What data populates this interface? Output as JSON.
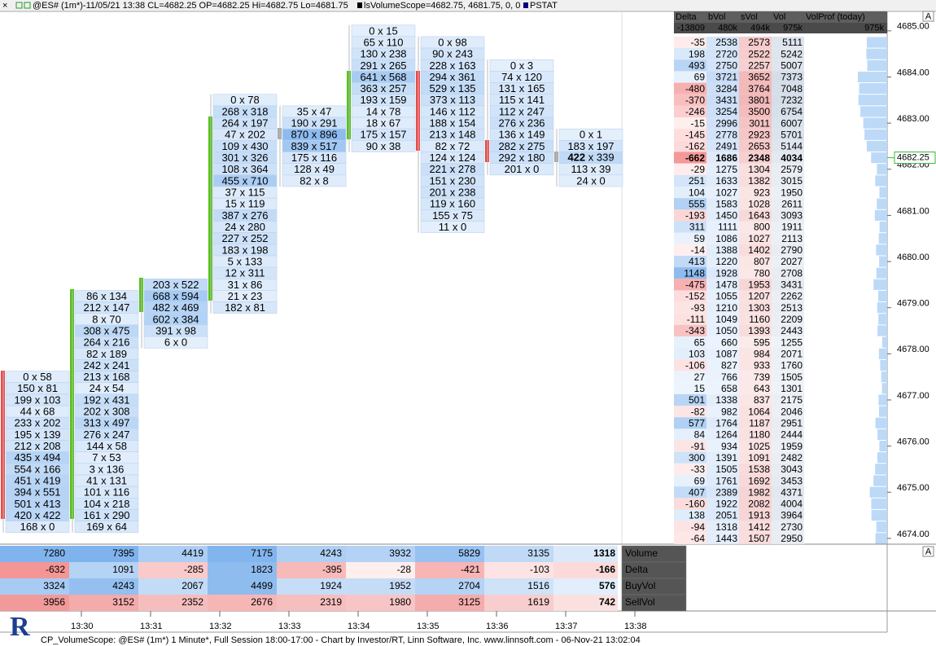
{
  "title_bar": {
    "symbol": "@ES# (1m*)-11/05/21 13:38 CL=4682.25 OP=4682.25 Hi=4682.75 Lo=4681.75",
    "study": "lsVolumeScope=4682.75, 4681.75, 0, 0",
    "stat": "PSTAT"
  },
  "footprint": [
    {
      "high": 4677.5,
      "cells": [
        "0 x 58",
        "150 x 81",
        "199 x 103",
        "44 x 68",
        "233 x 202",
        "195 x 139",
        "212 x 208",
        "435 x 494",
        "554 x 166",
        "451 x 419",
        "394 x 551",
        "501 x 413",
        "420 x 422",
        "168 x 0"
      ]
    },
    {
      "high": 4679.25,
      "cells": [
        "86 x 134",
        "212 x 147",
        "8 x 70",
        "308 x 475",
        "264 x 216",
        "82 x 189",
        "242 x 241",
        "213 x 168",
        "24 x 54",
        "192 x 431",
        "202 x 308",
        "313 x 497",
        "276 x 247",
        "144 x 58",
        "7 x 53",
        "3 x 136",
        "41 x 131",
        "101 x 116",
        "104 x 218",
        "161 x 290",
        "169 x 64"
      ]
    },
    {
      "high": 4679.5,
      "cells": [
        "203 x 522",
        "668 x 594",
        "482 x 469",
        "602 x 384",
        "391 x 98",
        "6 x 0"
      ]
    },
    {
      "high": 4683.5,
      "cells": [
        "0 x 78",
        "268 x 318",
        "264 x 197",
        "47 x 202",
        "109 x 430",
        "301 x 326",
        "108 x 364",
        "455 x 710",
        "37 x 115",
        "15 x 119",
        "387 x 276",
        "24 x 280",
        "227 x 252",
        "183 x 198",
        "5 x 133",
        "12 x 311",
        "31 x 86",
        "21 x 23",
        "182 x 81"
      ]
    },
    {
      "high": 4683.25,
      "cells": [
        "35 x 47",
        "190 x 291",
        "870 x 896",
        "839 x 517",
        "175 x 116",
        "128 x 49",
        "82 x 8"
      ]
    },
    {
      "high": 4685,
      "cells": [
        "0 x 15",
        "65 x 110",
        "130 x 238",
        "291 x 265",
        "641 x 568",
        "363 x 257",
        "193 x 159",
        "14 x 78",
        "18 x 67",
        "175 x 157",
        "90 x 38"
      ]
    },
    {
      "high": 4684.75,
      "cells": [
        "0 x 98",
        "90 x 243",
        "228 x 163",
        "294 x 361",
        "529 x 135",
        "373 x 113",
        "146 x 112",
        "188 x 154",
        "213 x 148",
        "82 x 72",
        "124 x 124",
        "221 x 278",
        "151 x 230",
        "201 x 238",
        "119 x 160",
        "155 x 75",
        "11 x 0"
      ]
    },
    {
      "high": 4684.25,
      "cells": [
        "0 x 3",
        "74 x 120",
        "131 x 165",
        "115 x 141",
        "112 x 247",
        "276 x 236",
        "136 x 149",
        "282 x 275",
        "292 x 180",
        "201 x 0"
      ]
    },
    {
      "high": 4682.75,
      "cells": [
        "0 x 1",
        "183 x 197",
        "422 x 339",
        "113 x 39",
        "24 x 0"
      ]
    }
  ],
  "profile_table": {
    "headers": [
      "Delta",
      "bVol",
      "sVol",
      "Vol",
      "VolProf (today)"
    ],
    "totals": [
      "-13809",
      "480k",
      "494k",
      "975k",
      "975k"
    ],
    "rows": [
      [
        -35,
        2538,
        2573,
        5111
      ],
      [
        198,
        2720,
        2522,
        5242
      ],
      [
        493,
        2750,
        2257,
        5007
      ],
      [
        69,
        3721,
        3652,
        7373
      ],
      [
        -480,
        3284,
        3764,
        7048
      ],
      [
        -370,
        3431,
        3801,
        7232
      ],
      [
        -246,
        3254,
        3500,
        6754
      ],
      [
        -15,
        2996,
        3011,
        6007
      ],
      [
        -145,
        2778,
        2923,
        5701
      ],
      [
        -162,
        2491,
        2653,
        5144
      ],
      [
        -662,
        1686,
        2348,
        4034
      ],
      [
        -29,
        1275,
        1304,
        2579
      ],
      [
        251,
        1633,
        1382,
        3015
      ],
      [
        104,
        1027,
        923,
        1950
      ],
      [
        555,
        1583,
        1028,
        2611
      ],
      [
        -193,
        1450,
        1643,
        3093
      ],
      [
        311,
        1111,
        800,
        1911
      ],
      [
        59,
        1086,
        1027,
        2113
      ],
      [
        -14,
        1388,
        1402,
        2790
      ],
      [
        413,
        1220,
        807,
        2027
      ],
      [
        1148,
        1928,
        780,
        2708
      ],
      [
        -475,
        1478,
        1953,
        3431
      ],
      [
        -152,
        1055,
        1207,
        2262
      ],
      [
        -93,
        1210,
        1303,
        2513
      ],
      [
        -111,
        1049,
        1160,
        2209
      ],
      [
        -343,
        1050,
        1393,
        2443
      ],
      [
        65,
        660,
        595,
        1255
      ],
      [
        103,
        1087,
        984,
        2071
      ],
      [
        -106,
        827,
        933,
        1760
      ],
      [
        27,
        766,
        739,
        1505
      ],
      [
        15,
        658,
        643,
        1301
      ],
      [
        501,
        1338,
        837,
        2175
      ],
      [
        -82,
        982,
        1064,
        2046
      ],
      [
        577,
        1764,
        1187,
        2951
      ],
      [
        84,
        1264,
        1180,
        2444
      ],
      [
        -91,
        934,
        1025,
        1959
      ],
      [
        300,
        1391,
        1091,
        2482
      ],
      [
        -33,
        1505,
        1538,
        3043
      ],
      [
        69,
        1761,
        1692,
        3453
      ],
      [
        407,
        2389,
        1982,
        4371
      ],
      [
        -160,
        1922,
        2082,
        4004
      ],
      [
        138,
        2051,
        1913,
        3964
      ],
      [
        -94,
        1318,
        1412,
        2730
      ],
      [
        -64,
        1443,
        1507,
        2950
      ]
    ]
  },
  "price_axis": {
    "ticks": [
      {
        "value": 4685,
        "label": "4685.00"
      },
      {
        "value": 4684,
        "label": "4684.00"
      },
      {
        "value": 4683,
        "label": "4683.00"
      },
      {
        "value": 4682,
        "label": "4682.00"
      },
      {
        "value": 4681,
        "label": "4681.00"
      },
      {
        "value": 4680,
        "label": "4680.00"
      },
      {
        "value": 4679,
        "label": "4679.00"
      },
      {
        "value": 4678,
        "label": "4678.00"
      },
      {
        "value": 4677,
        "label": "4677.00"
      },
      {
        "value": 4676,
        "label": "4676.00"
      },
      {
        "value": 4675,
        "label": "4675.00"
      },
      {
        "value": 4674,
        "label": "4674.00"
      }
    ],
    "current": {
      "value": 4682.25,
      "label": "4682.25"
    }
  },
  "summary_table": {
    "rows": [
      {
        "name": "Volume",
        "values": [
          7280,
          7395,
          4419,
          7175,
          4243,
          3932,
          5829,
          3135,
          1318
        ]
      },
      {
        "name": "Delta",
        "values": [
          -632,
          1091,
          -285,
          1823,
          -395,
          -28,
          -421,
          -103,
          -166
        ]
      },
      {
        "name": "BuyVol",
        "values": [
          3324,
          4243,
          2067,
          4499,
          1924,
          1952,
          2704,
          1516,
          576
        ]
      },
      {
        "name": "SellVol",
        "values": [
          3956,
          3152,
          2352,
          2676,
          2319,
          1980,
          3125,
          1619,
          742
        ]
      }
    ]
  },
  "time_axis": [
    "13:30",
    "13:31",
    "13:32",
    "13:33",
    "13:34",
    "13:35",
    "13:36",
    "13:37",
    "13:38"
  ],
  "corner_buttons": [
    "A",
    "A"
  ],
  "logo": "R",
  "footer": "CP_VolumeScope: @ES# (1m*) 1 Minute*, Full Session 18:00-17:00 - Chart by Investor/RT, Linn Software, Inc. www.linnsoft.com - 06-Nov-21 13:02:04"
}
